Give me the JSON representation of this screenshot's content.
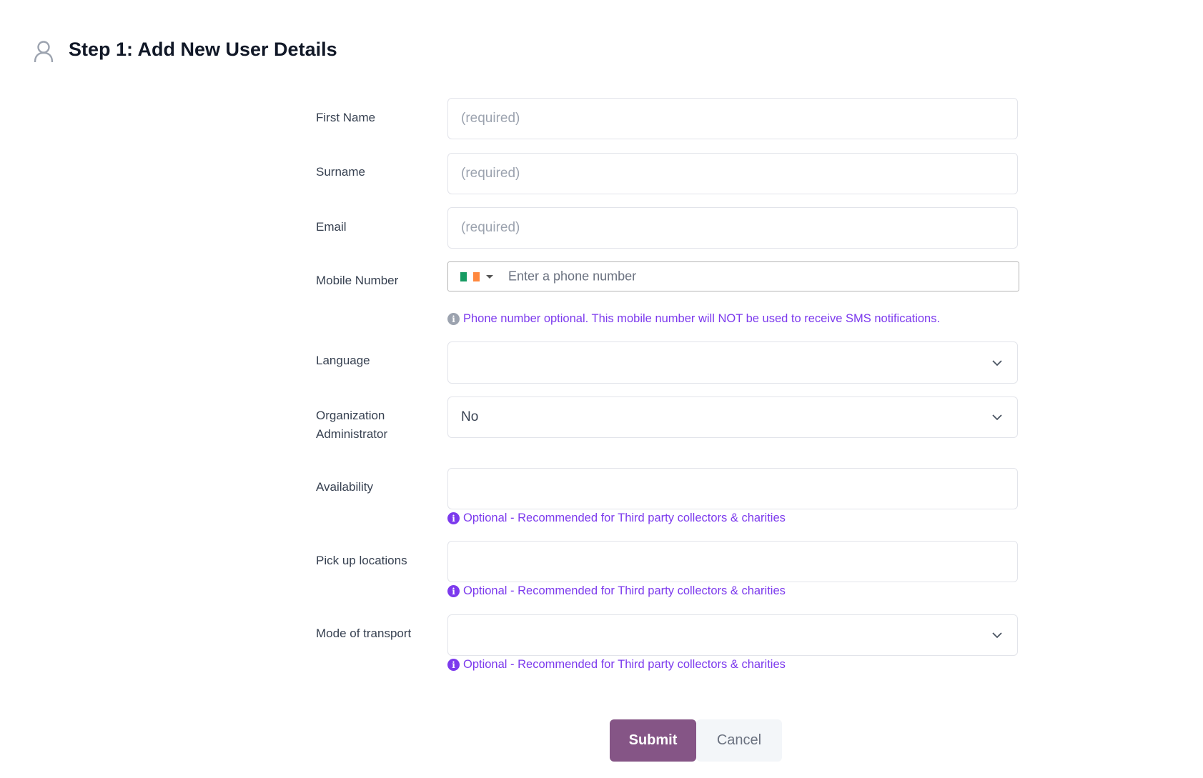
{
  "header": {
    "title": "Step 1: Add New User Details",
    "icon": "user-icon"
  },
  "form": {
    "first_name": {
      "label": "First Name",
      "placeholder": "(required)"
    },
    "surname": {
      "label": "Surname",
      "placeholder": "(required)"
    },
    "email": {
      "label": "Email",
      "placeholder": "(required)"
    },
    "mobile": {
      "label": "Mobile Number",
      "placeholder": "Enter a phone number",
      "country": "Ireland",
      "hint": "Phone number optional. This mobile number will NOT be used to receive SMS notifications."
    },
    "language": {
      "label": "Language",
      "value": ""
    },
    "org_admin": {
      "label_line1": "Organization",
      "label_line2": "Administrator",
      "value": "No"
    },
    "availability": {
      "label": "Availability",
      "hint": "Optional - Recommended for Third party collectors & charities"
    },
    "pickup": {
      "label": "Pick up locations",
      "hint": "Optional - Recommended for Third party collectors & charities"
    },
    "transport": {
      "label": "Mode of transport",
      "value": "",
      "hint": "Optional - Recommended for Third party collectors & charities"
    }
  },
  "buttons": {
    "submit": "Submit",
    "cancel": "Cancel"
  },
  "colors": {
    "accent": "#855586",
    "hint": "#7c3aed",
    "hint_icon_grey": "#9ca3af"
  }
}
